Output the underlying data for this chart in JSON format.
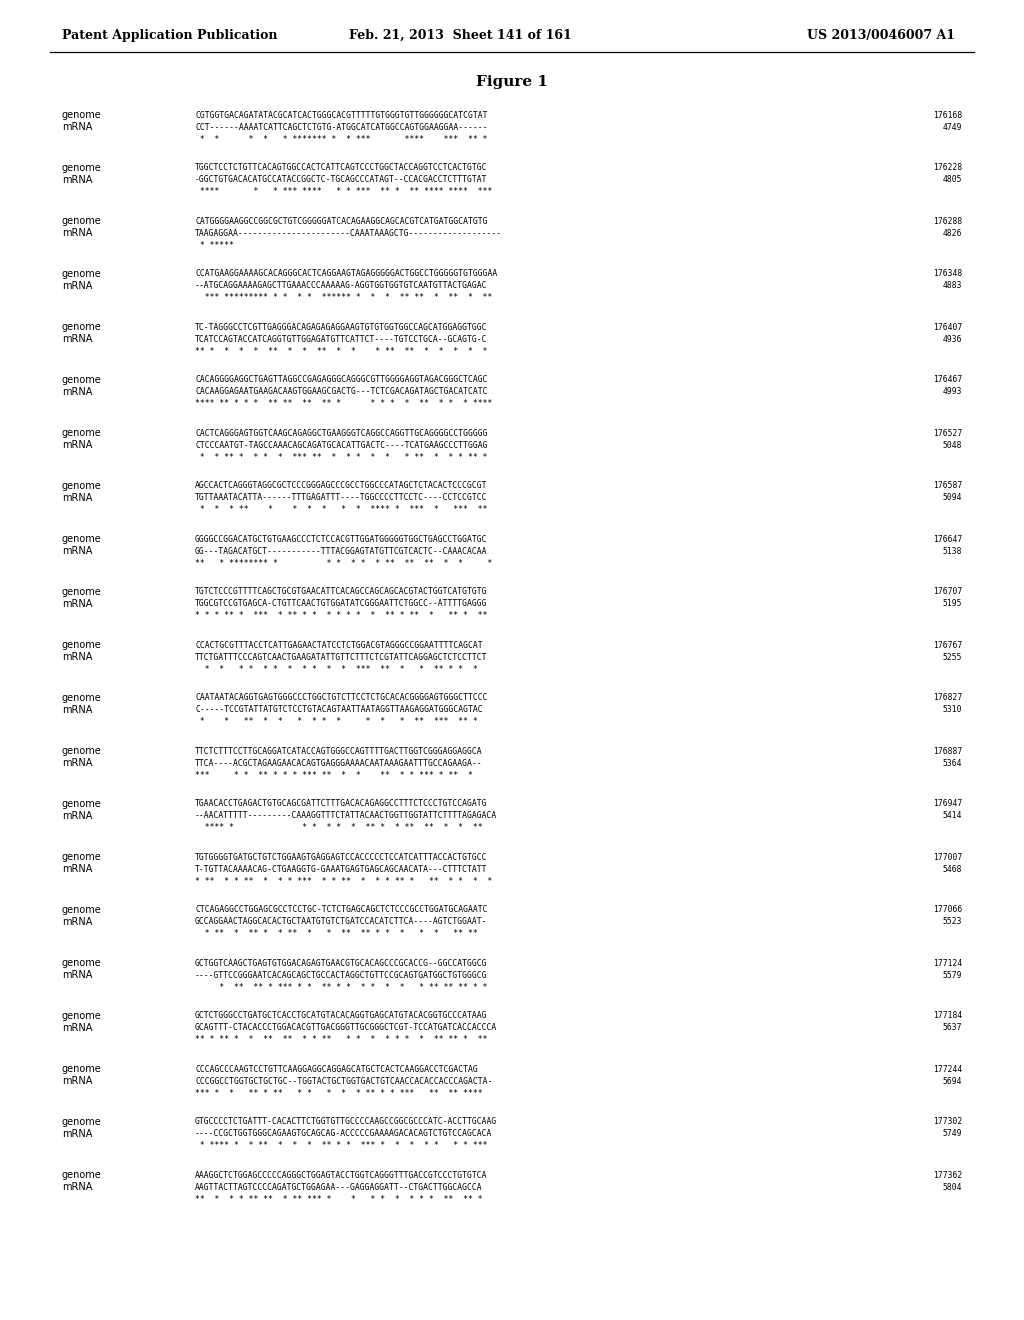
{
  "header_left": "Patent Application Publication",
  "header_center": "Feb. 21, 2013  Sheet 141 of 161",
  "header_right": "US 2013/0046007 A1",
  "figure_title": "Figure 1",
  "background_color": "#ffffff",
  "text_color": "#000000",
  "sequences": [
    {
      "genome": "CGTGGTGACAGATATACGCATCACTGGGCACGTTTTTGTGGGTGTTGGGGGGCATCGTAT",
      "mrna": "CCT------AAAATCATTCAGCTCTGTG-ATGGCATCATGGCCAGTGGAAGGAA------",
      "stars": " *  *      *  *   * ******* *  * ***       ****    ***  ** * ",
      "genome_num": "176168",
      "mrna_num": "4749"
    },
    {
      "genome": "TGGCTCCTCTGTTCACAGTGGCCACTCATTCAGTCCCTGGCTACCAGGTCCTCACTGTGC",
      "mrna": "-GGCTGTGACACATGCCATACCGGCTC-TGCAGCCCATAGT--CCACGACCTCTTTGTAT",
      "stars": " ****       *   * *** ****   * * ***  ** *  ** **** ****  ***",
      "genome_num": "176228",
      "mrna_num": "4805"
    },
    {
      "genome": "CATGGGGAAGGCCGGCGCTGTCGGGGGATCACAGAAGGCAGCACGTCATGATGGCATGTG",
      "mrna": "TAAGAGGAA-----------------------CAAATAAAGCTG-------------------",
      "stars": " * *****                                                      ",
      "genome_num": "176288",
      "mrna_num": "4826"
    },
    {
      "genome": "CCATGAAGGAAAAGCACAGGGCACTCAGGAAGTAGAGGGGGACTGGCCTGGGGGTGTGGGAA",
      "mrna": "--ATGCAGGAAAAGAGCTTGAAACCCAAAAAG-AGGTGGTGGTGTCAATGTTACTGAGAC",
      "stars": "  *** ********* * *  * *  ****** *  *  *  ** **  *  **  *  **",
      "genome_num": "176348",
      "mrna_num": "4883"
    },
    {
      "genome": "TC-TAGGGCCTCGTTGAGGGACAGAGAGAGGAAGTGTGTGGTGGCCAGCATGGAGGTGGC",
      "mrna": "TCATCCAGTACCATCAGGTGTTGGAGATGTTCATTCT----TGTCCTGCA--GCAGTG-C",
      "stars": "** *  *  *  *  **  *  *  **  *  *    * **  **  *  *  *  *  *",
      "genome_num": "176407",
      "mrna_num": "4936"
    },
    {
      "genome": "CACAGGGGAGGCTGAGTTAGGCCGAGAGGGCAGGGCGTTGGGGAGGTAGACGGGCTCAGC",
      "mrna": "CACAAGGAGAATGAAGACAAGTGGAAGCGACTG---TCTCGACAGATAGCTGACATCATC",
      "stars": "**** ** * * *  ** **  **  ** *      * * *  *  **  * *  * ****",
      "genome_num": "176467",
      "mrna_num": "4993"
    },
    {
      "genome": "CACTCAGGGAGTGGTCAAGCAGAGGCTGAAGGGTCAGGCCAGGTTGCAGGGGCCTGGGGG",
      "mrna": "CTCCCAATGT-TAGCCAAACAGCAGATGCACATTGACTC----TCATGAAGCCCTTGGAG",
      "stars": " *  * ** *  * *  *  *** **  *  * *  *  *   * **  *  * * ** *",
      "genome_num": "176527",
      "mrna_num": "5048"
    },
    {
      "genome": "AGCCACTCAGGGTAGGCGCTCCCGGGAGCCCGCCTGGCCCATAGCTCTACACTCCCGCGT",
      "mrna": "TGTTAAATACATTA------TTTGAGATTT----TGGCCCCTTCCTC----CCTCCGTCC",
      "stars": " *  *  * **    *    *  *  *   *  *  **** *  ***  *   ***  ** ",
      "genome_num": "176587",
      "mrna_num": "5094"
    },
    {
      "genome": "GGGGCCGGACATGCTGTGAAGCCCTCTCCACGTTGGATGGGGGTGGCTGAGCCTGGATGC",
      "mrna": "GG---TAGACATGCT-----------TTTACGGAGTATGTTCGTCACTC--CAAACACAA",
      "stars": "**   * ******** *          * *  * *  * **  **  **  *  *     *",
      "genome_num": "176647",
      "mrna_num": "5138"
    },
    {
      "genome": "TGTCTCCCGTTTTCAGCTGCGTGAACATTCACAGCCAGCAGCACGTACTGGTCATGTGTG",
      "mrna": "TGGCGTCCGTGAGCA-CTGTTCAACTGTGGATATCGGGAATTCTGGCC--ATTTTGAGGG",
      "stars": "* * * ** *  ***  * ** * *  * * * *  *  ** * **  *   ** *  **",
      "genome_num": "176707",
      "mrna_num": "5195"
    },
    {
      "genome": "CCACTGCGTTTACCTCATTGAGAACTATCCTCTGGACGTAGGGCCGGAATTTTCAGCAT",
      "mrna": "TTCTGATTTCCCAGTCAACTGAAGATATTGTTCTTTCTCGTATTCAGGAGCTCTCCTTCT",
      "stars": "  *  *   * *  * *  *  * *  *  *  ***  **  *   *  ** * *  *  ",
      "genome_num": "176767",
      "mrna_num": "5255"
    },
    {
      "genome": "CAATAATACAGGTGAGTGGGCCCTGGCTGTCTTCCTCTGCACACGGGGAGTGGGCTTCCC",
      "mrna": "C-----TCCGTATTATGTCTCCTGTACAGTAATTAATAGGTTAAGAGGATGGGCAGTAC",
      "stars": " *    *   **  *  *   *  * *  *     *  *   *  **  ***  ** *  ",
      "genome_num": "176827",
      "mrna_num": "5310"
    },
    {
      "genome": "TTCTCTTTCCTTGCAGGATCATACCAGTGGGCCAGTTTTGACTTGGTCGGGAGGAGGCA",
      "mrna": "TTCA----ACGCTAGAAGAACACAGTGAGGGAAAACAATAAAGAATTTGCCAGAAGA--",
      "stars": "***     * *  ** * * * *** **  *  *    **  * * *** * **  *   ",
      "genome_num": "176887",
      "mrna_num": "5364"
    },
    {
      "genome": "TGAACACCTGAGACTGTGCAGCGATTCTTTGACACAGAGGCCTTTCTCCCTGTCCAGATG",
      "mrna": "--AACATTTTT---------CAAAGGTTTCTATTACAACTGGTTGGTATTCTTTTAGAGACA",
      "stars": "  **** *              * *  * *  *  ** *  * **  **  *  *  **  ",
      "genome_num": "176947",
      "mrna_num": "5414"
    },
    {
      "genome": "TGTGGGGTGATGCTGTCTGGAAGTGAGGAGTCCACCCCCTCCATCATTTACCACTGTGCC",
      "mrna": "T-TGTTACAAAACAG-CTGAAGGTG-GAAATGAGTGAGCAGCAACATA---CTTTCTATT",
      "stars": "* **  * * **  *  * * ***  * * **  *  * * ** *   **  * *  *  *",
      "genome_num": "177007",
      "mrna_num": "5468"
    },
    {
      "genome": "CTCAGAGGCCTGGAGCGCCTCCTGC-TCTCTGAGCAGCTCTCCCGCCTGGATGCAGAATC",
      "mrna": "GCCAGGAACTAGGCACACTGCTAATGTGTCTGATCCACATCTTCA----AGTCTGGAAT-",
      "stars": "  * **  *  ** *  * **  *   *  **  ** * *  *   *  *   ** **  ",
      "genome_num": "177066",
      "mrna_num": "5523"
    },
    {
      "genome": "GCTGGTCAAGCTGAGTGTGGACAGAGTGAACGTGCACAGCCCGCACCG--GGCCATGGCG",
      "mrna": "----GTTCCGGGAATCACAGCAGCTGCCACTAGGCTGTTCCGCAGTGATGGCTGTGGGCG",
      "stars": "     *  **  ** * *** * *  ** * *  * *  *  *   * ** ** ** * *",
      "genome_num": "177124",
      "mrna_num": "5579"
    },
    {
      "genome": "GCTCTGGGCCTGATGCTCACCTGCATGTACACAGGTGAGCATGTACACGGTGCCCATAAG",
      "mrna": "GCAGTTT-CTACACCCTGGACACGTTGACGGGTTGCGGGCTCGT-TCCATGATCACCACCCA",
      "stars": "** * ** *  *  **  **  * * **   * *  *  * * *  *  ** ** *  **",
      "genome_num": "177184",
      "mrna_num": "5637"
    },
    {
      "genome": "CCCAGCCCAAGTCCTGTTCAAGGAGGCAGGAGCATGCTCACTCAAGGACCTCGACTAG",
      "mrna": "CCCGGCCTGGTGCTGCTGC--TGGTACTGCTGGTGACTGTCAACCACACCACCCAGACTA-",
      "stars": "*** *  *   ** * **   * *   *  *  * ** * * ***   **  ** ****  ",
      "genome_num": "177244",
      "mrna_num": "5694"
    },
    {
      "genome": "GTGCCCCTCTGATTT-CACACTTCTGGTGTTGCCCCAAGCCGGCGCCCATC-ACCTTGCAAG",
      "mrna": "----CCGCTGGTGGGCAGAAGTGCAGCAG-ACCCCCGAAAAGACACAGTCTGTCCAGCACA",
      "stars": " * **** *  * **  *  *  *  ** * *  *** *  *  *  * *   * * ***",
      "genome_num": "177302",
      "mrna_num": "5749"
    },
    {
      "genome": "AAAGGCTCTGGAGCCCCCAGGGCTGGAGTACCTGGTCAGGGTTTGACCGTCCCTGTGTCA",
      "mrna": "AAGTTACTTAGTCCCCAGATGCTGGAGAA---GAGGAGGATT--CTGACTTGGCAGCCA",
      "stars": "**  *  * * ** **  * ** *** *    *   * *  *  * * *  **  ** * ",
      "genome_num": "177362",
      "mrna_num": "5804"
    }
  ]
}
